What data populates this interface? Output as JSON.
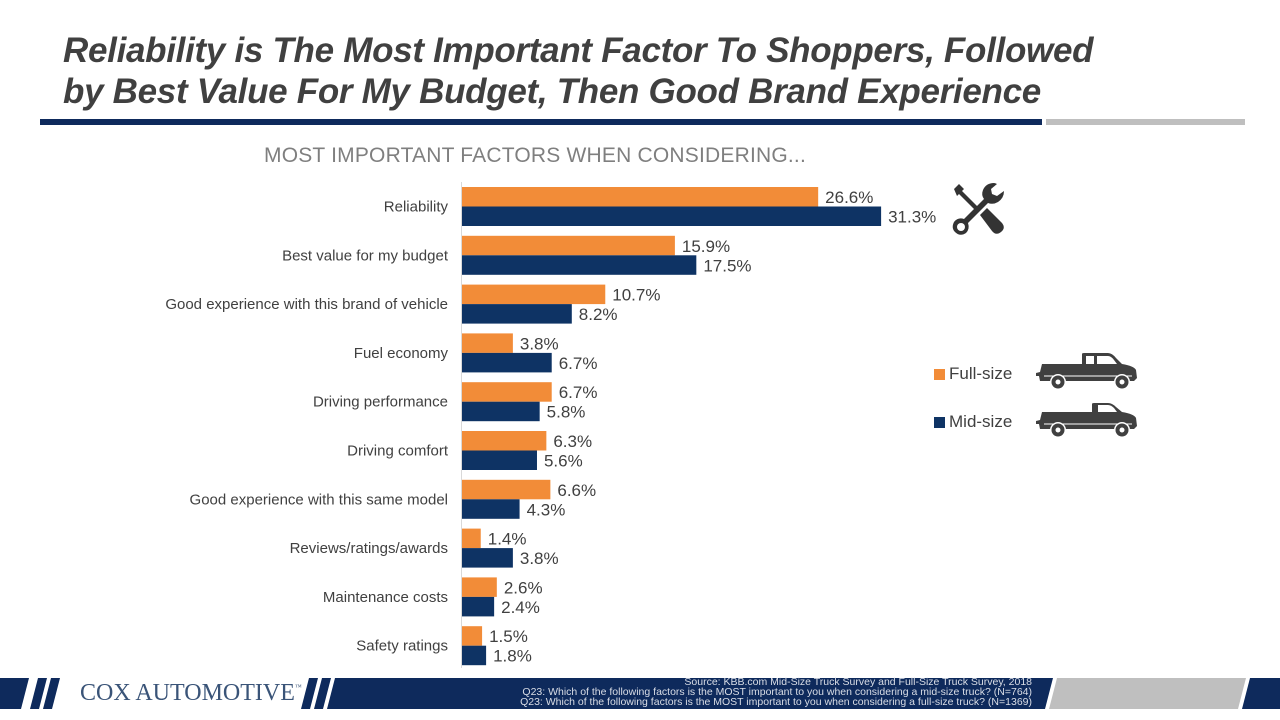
{
  "slide": {
    "title_line1": "Reliability is The Most Important Factor To Shoppers, Followed",
    "title_line2": "by Best Value For My Budget, Then Good Brand Experience"
  },
  "colors": {
    "full_size": "#f28c38",
    "mid_size": "#0e3364",
    "navy": "#0e2a5c",
    "gray": "#bfbfbf",
    "text": "#404040"
  },
  "icons": {
    "reliability": "wrench-screwdriver-icon",
    "full_size": "pickup-truck-icon",
    "mid_size": "pickup-truck-icon"
  },
  "chart_data": {
    "type": "bar",
    "orientation": "horizontal",
    "title": "MOST IMPORTANT FACTORS WHEN CONSIDERING...",
    "xlabel": "",
    "ylabel": "",
    "xlim": [
      0,
      35
    ],
    "grid": false,
    "legend_position": "right",
    "categories": [
      "Reliability",
      "Best value for my budget",
      "Good experience with this brand of vehicle",
      "Fuel economy",
      "Driving performance",
      "Driving comfort",
      "Good experience with this same model",
      "Reviews/ratings/awards",
      "Maintenance costs",
      "Safety ratings"
    ],
    "series": [
      {
        "name": "Full-size",
        "color": "#f28c38",
        "values": [
          26.6,
          15.9,
          10.7,
          3.8,
          6.7,
          6.3,
          6.6,
          1.4,
          2.6,
          1.5
        ],
        "labels": [
          "26.6%",
          "15.9%",
          "10.7%",
          "3.8%",
          "6.7%",
          "6.3%",
          "6.6%",
          "1.4%",
          "2.6%",
          "1.5%"
        ]
      },
      {
        "name": "Mid-size",
        "color": "#0e3364",
        "values": [
          31.3,
          17.5,
          8.2,
          6.7,
          5.8,
          5.6,
          4.3,
          3.8,
          2.4,
          1.8
        ],
        "labels": [
          "31.3%",
          "17.5%",
          "8.2%",
          "6.7%",
          "5.8%",
          "5.6%",
          "4.3%",
          "3.8%",
          "2.4%",
          "1.8%"
        ]
      }
    ]
  },
  "footer": {
    "logo_text": "COX AUTOMOTIVE",
    "logo_tm": "™",
    "source_line": "Source: KBB.com Mid-Size Truck Survey and Full-Size Truck Survey, 2018",
    "q_mid": "Q23: Which of the following factors is the MOST important to you when considering a mid-size truck? (N=764)",
    "q_full": "Q23: Which of the following factors is the MOST important to you when considering a full-size truck? (N=1369)"
  }
}
